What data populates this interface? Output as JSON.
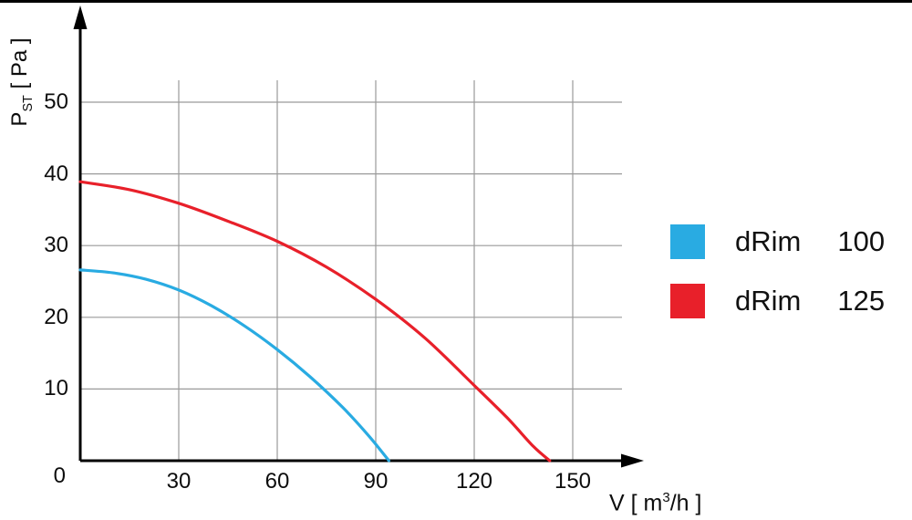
{
  "chart_data": {
    "type": "line",
    "title": "",
    "xlabel": {
      "pre": "V [ m",
      "sup": "3",
      "post": "/h ]"
    },
    "ylabel": {
      "base": "P",
      "sub": "ST",
      "rest": " [ Pa ]"
    },
    "origin_label": "0",
    "x_ticks": [
      30,
      60,
      90,
      120,
      150
    ],
    "y_ticks": [
      10,
      20,
      30,
      40,
      50
    ],
    "xlim": [
      0,
      170
    ],
    "ylim": [
      0,
      58
    ],
    "grid": true,
    "legend_position": "right",
    "axis_color": "#000000",
    "grid_color": "#9a9a9a",
    "series": [
      {
        "name": "dRim",
        "size": "100",
        "color": "#29ABE2",
        "points": [
          [
            0,
            26.6
          ],
          [
            10,
            26.2
          ],
          [
            20,
            25.3
          ],
          [
            30,
            23.8
          ],
          [
            40,
            21.6
          ],
          [
            50,
            18.8
          ],
          [
            60,
            15.5
          ],
          [
            70,
            11.7
          ],
          [
            80,
            7.4
          ],
          [
            88,
            3.4
          ],
          [
            94,
            0
          ]
        ]
      },
      {
        "name": "dRim",
        "size": "125",
        "color": "#E8202A",
        "points": [
          [
            0,
            38.9
          ],
          [
            15,
            37.8
          ],
          [
            30,
            35.9
          ],
          [
            45,
            33.4
          ],
          [
            60,
            30.6
          ],
          [
            75,
            27.0
          ],
          [
            90,
            22.5
          ],
          [
            105,
            17.1
          ],
          [
            120,
            10.5
          ],
          [
            130,
            6.0
          ],
          [
            138,
            2.0
          ],
          [
            143,
            0
          ]
        ]
      }
    ]
  }
}
